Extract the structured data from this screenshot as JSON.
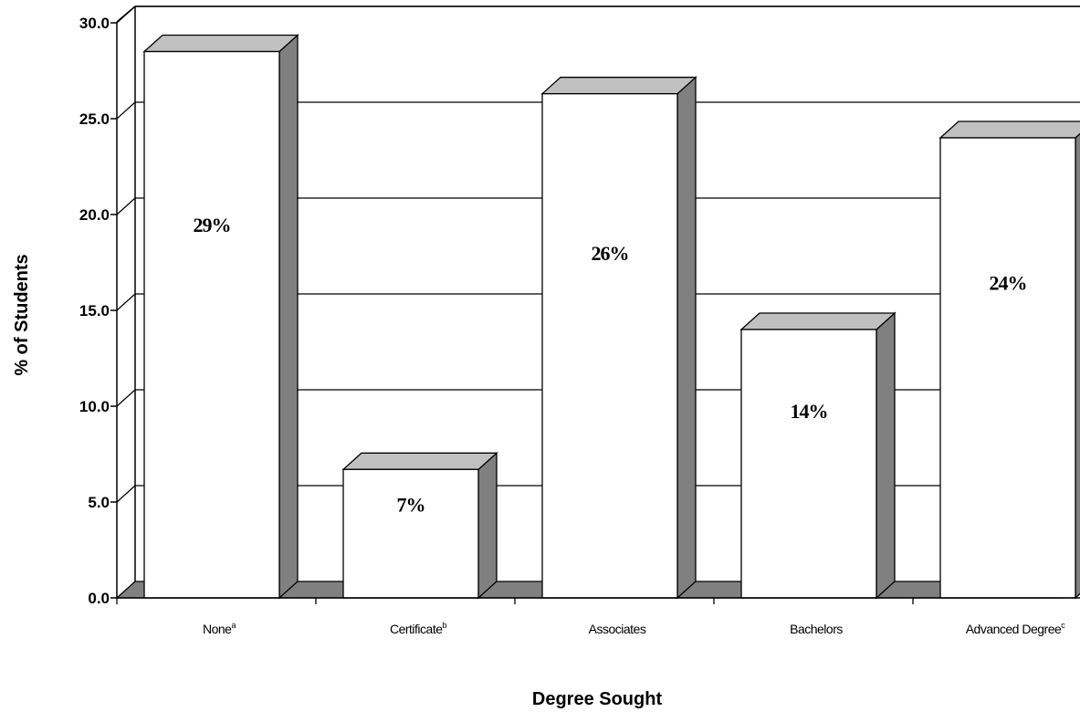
{
  "chart_data": {
    "type": "bar",
    "categories": [
      "None",
      "Certificate",
      "Associates",
      "Bachelors",
      "Advanced Degree"
    ],
    "category_superscripts": [
      "a",
      "b",
      "",
      "",
      "c"
    ],
    "values": [
      28.5,
      6.7,
      26.3,
      14.0,
      24.0
    ],
    "data_labels": [
      "29%",
      "7%",
      "26%",
      "14%",
      "24%"
    ],
    "y_tick_labels": [
      "0.0",
      "5.0",
      "10.0",
      "15.0",
      "20.0",
      "25.0",
      "30.0"
    ],
    "ylim": [
      0,
      30
    ],
    "ytick_step": 5,
    "xlabel": "Degree Sought",
    "ylabel": "% of Students",
    "grid": true,
    "legend": "none",
    "style": "3d",
    "colors": {
      "bar_face": "#ffffff",
      "bar_top": "#c0c0c0",
      "bar_side": "#808080",
      "floor": "#808080",
      "gridline": "#000000"
    }
  }
}
